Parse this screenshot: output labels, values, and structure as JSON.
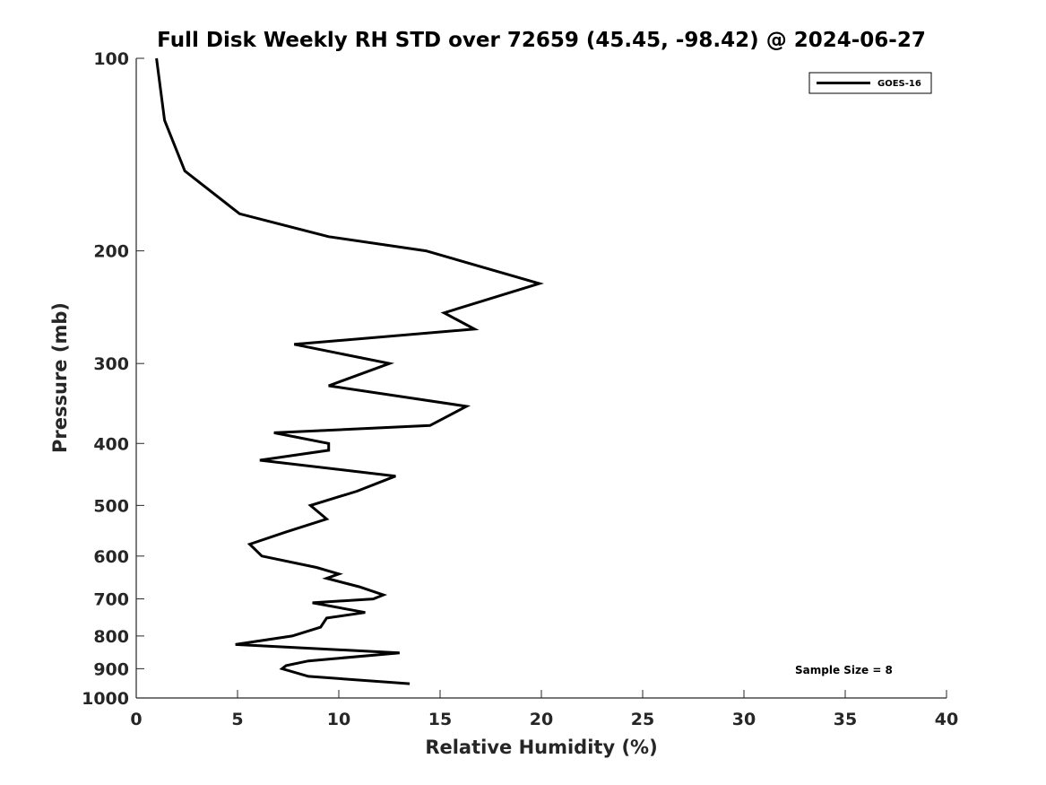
{
  "chart_data": {
    "type": "line",
    "title": "Full Disk Weekly RH STD over 72659 (45.45, -98.42) @ 2024-06-27",
    "xlabel": "Relative Humidity (%)",
    "ylabel": "Pressure (mb)",
    "xlim": [
      0,
      40
    ],
    "ylim": [
      1000,
      100
    ],
    "yscale": "log",
    "xticks": [
      0,
      5,
      10,
      15,
      20,
      25,
      30,
      35,
      40
    ],
    "xtick_labels": [
      "0",
      "5",
      "10",
      "15",
      "20",
      "25",
      "30",
      "35",
      "40"
    ],
    "yticks": [
      100,
      200,
      300,
      400,
      500,
      600,
      700,
      800,
      900,
      1000
    ],
    "ytick_labels": [
      "100",
      "200",
      "300",
      "400",
      "500",
      "600",
      "700",
      "800",
      "900",
      "1000"
    ],
    "grid": false,
    "legend": {
      "position": "top-right",
      "entries": [
        "GOES-16"
      ]
    },
    "annotation": "Sample Size = 8",
    "series": [
      {
        "name": "GOES-16",
        "color": "#000000",
        "points": [
          [
            1.0,
            100
          ],
          [
            1.4,
            125
          ],
          [
            2.4,
            150
          ],
          [
            5.1,
            175
          ],
          [
            9.5,
            190
          ],
          [
            14.3,
            200
          ],
          [
            19.9,
            225
          ],
          [
            15.2,
            250
          ],
          [
            16.7,
            265
          ],
          [
            7.8,
            280
          ],
          [
            12.5,
            300
          ],
          [
            9.5,
            325
          ],
          [
            16.3,
            350
          ],
          [
            14.5,
            375
          ],
          [
            6.8,
            385
          ],
          [
            9.5,
            400
          ],
          [
            9.5,
            410
          ],
          [
            6.1,
            425
          ],
          [
            12.8,
            450
          ],
          [
            10.9,
            475
          ],
          [
            8.6,
            500
          ],
          [
            9.4,
            525
          ],
          [
            7.4,
            550
          ],
          [
            5.6,
            575
          ],
          [
            6.2,
            600
          ],
          [
            8.9,
            625
          ],
          [
            10.0,
            640
          ],
          [
            9.4,
            650
          ],
          [
            11.0,
            670
          ],
          [
            12.2,
            690
          ],
          [
            11.7,
            700
          ],
          [
            8.7,
            710
          ],
          [
            11.3,
            735
          ],
          [
            9.4,
            750
          ],
          [
            9.1,
            775
          ],
          [
            7.7,
            800
          ],
          [
            4.9,
            825
          ],
          [
            13.0,
            850
          ],
          [
            8.5,
            875
          ],
          [
            7.4,
            890
          ],
          [
            7.2,
            900
          ],
          [
            8.5,
            925
          ],
          [
            13.5,
            950
          ]
        ]
      }
    ]
  }
}
